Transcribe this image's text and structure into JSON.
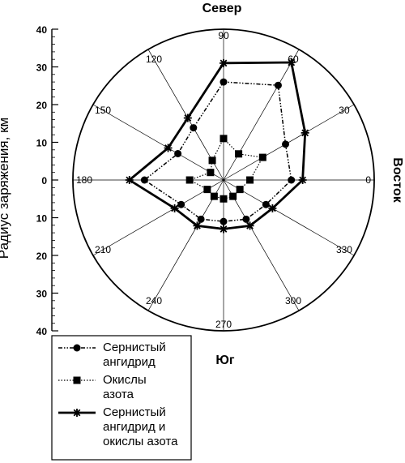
{
  "chart_data": {
    "type": "radar",
    "directions": {
      "north": "Север",
      "south": "Юг",
      "east": "Восток"
    },
    "ylabel": "Радиус заряжения, км",
    "radial_range": [
      0,
      40
    ],
    "radial_ticks": [
      "40",
      "30",
      "20",
      "10",
      "0",
      "10",
      "20",
      "30",
      "40"
    ],
    "angle_labels": [
      "0",
      "30",
      "60",
      "90",
      "120",
      "150",
      "180",
      "210",
      "240",
      "270",
      "300",
      "330"
    ],
    "angles": [
      0,
      30,
      60,
      90,
      120,
      150,
      180,
      210,
      240,
      270,
      300,
      330
    ],
    "series": [
      {
        "name": "Сернистый ангидрид",
        "legend_lines": [
          "Сернистый",
          "ангидрид"
        ],
        "marker": "circle",
        "values": [
          18,
          19,
          29,
          26,
          16,
          14,
          21,
          13,
          12,
          11,
          12,
          13
        ]
      },
      {
        "name": "Окислы азота",
        "legend_lines": [
          "Окислы",
          "азота"
        ],
        "marker": "square",
        "values": [
          7,
          12,
          8,
          11,
          6,
          4,
          9,
          5,
          5,
          5,
          5,
          5
        ]
      },
      {
        "name": "Сернистый ангидрид и окислы азота",
        "legend_lines": [
          "Сернистый",
          "ангидрид и",
          "окислы азота"
        ],
        "marker": "star",
        "values": [
          21,
          25,
          36,
          31,
          19,
          17,
          25,
          15,
          14,
          13,
          14,
          15
        ]
      }
    ]
  }
}
